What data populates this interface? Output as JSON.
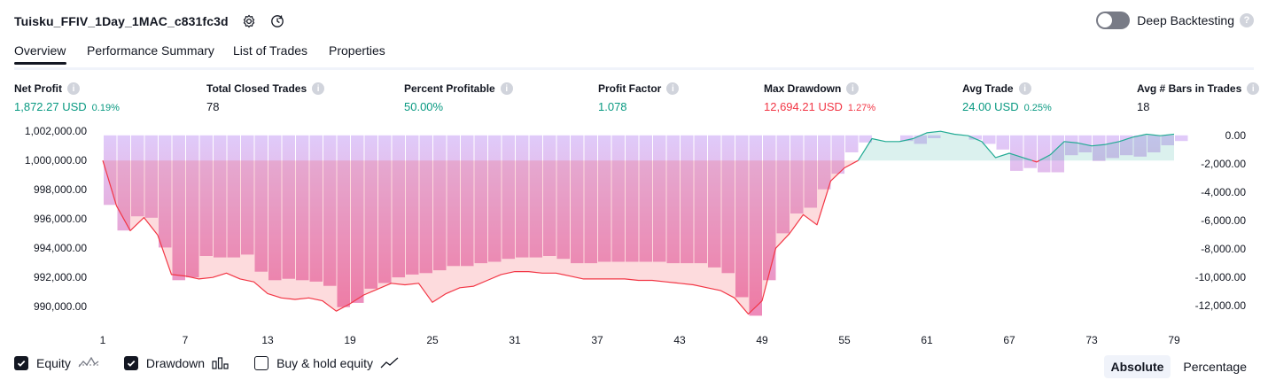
{
  "header": {
    "title": "Tuisku_FFIV_1Day_1MAC_c831fc3d",
    "settings_icon": "gear-icon",
    "replay_icon": "clock-replay-icon",
    "deep_backtesting_label": "Deep Backtesting",
    "deep_backtesting_enabled": false,
    "help_icon": "?"
  },
  "tabs": [
    {
      "label": "Overview",
      "active": true
    },
    {
      "label": "Performance Summary",
      "active": false
    },
    {
      "label": "List of Trades",
      "active": false
    },
    {
      "label": "Properties",
      "active": false
    }
  ],
  "metrics": {
    "info_icon": "i",
    "net_profit": {
      "label": "Net Profit",
      "value": "1,872.27 USD",
      "pct": "0.19%"
    },
    "total_closed_trades": {
      "label": "Total Closed Trades",
      "value": "78"
    },
    "percent_profitable": {
      "label": "Percent Profitable",
      "value": "50.00%"
    },
    "profit_factor": {
      "label": "Profit Factor",
      "value": "1.078"
    },
    "max_drawdown": {
      "label": "Max Drawdown",
      "value": "12,694.21 USD",
      "pct": "1.27%"
    },
    "avg_trade": {
      "label": "Avg Trade",
      "value": "24.00 USD",
      "pct": "0.25%"
    },
    "avg_bars": {
      "label": "Avg # Bars in Trades",
      "value": "18"
    }
  },
  "legend": {
    "equity": {
      "label": "Equity",
      "checked": true
    },
    "drawdown": {
      "label": "Drawdown",
      "checked": true
    },
    "buy_hold": {
      "label": "Buy & hold equity",
      "checked": false
    }
  },
  "modes": {
    "absolute": "Absolute",
    "percentage": "Percentage",
    "active": "Absolute"
  },
  "colors": {
    "profit_green": "#089981",
    "loss_red": "#f23645",
    "drawdown_bar": "#c38df5",
    "equity_line_loss": "#f23645",
    "equity_line_gain": "#22ab94"
  },
  "chart_data": {
    "type": "line",
    "title": "",
    "x_ticks": [
      "1",
      "7",
      "13",
      "19",
      "25",
      "31",
      "37",
      "43",
      "49",
      "55",
      "61",
      "67",
      "73",
      "79"
    ],
    "left_axis": {
      "ticks": [
        "1,002,000.00",
        "1,000,000.00",
        "998,000.00",
        "996,000.00",
        "994,000.00",
        "992,000.00",
        "990,000.00"
      ],
      "ylim": [
        988800,
        1002500
      ]
    },
    "right_axis": {
      "ticks": [
        "0.00",
        "-2,000.00",
        "-4,000.00",
        "-6,000.00",
        "-8,000.00",
        "-10,000.00",
        "-12,000.00"
      ],
      "ylim": [
        -13300,
        800
      ]
    },
    "baseline": 1000000,
    "series": [
      {
        "name": "Equity",
        "x": [
          1,
          2,
          3,
          4,
          5,
          6,
          7,
          8,
          9,
          10,
          11,
          12,
          13,
          14,
          15,
          16,
          17,
          18,
          19,
          20,
          21,
          22,
          23,
          24,
          25,
          26,
          27,
          28,
          29,
          30,
          31,
          32,
          33,
          34,
          35,
          36,
          37,
          38,
          39,
          40,
          41,
          42,
          43,
          44,
          45,
          46,
          47,
          48,
          49,
          50,
          51,
          52,
          53,
          54,
          55,
          56,
          57,
          58,
          59,
          60,
          61,
          62,
          63,
          64,
          65,
          66,
          67,
          68,
          69,
          70,
          71,
          72,
          73,
          74,
          75,
          76,
          77,
          78,
          79
        ],
        "values": [
          1000000,
          996900,
          995200,
          996100,
          994900,
          992200,
          992100,
          991900,
          992000,
          992300,
          991900,
          991700,
          990900,
          990600,
          990500,
          990600,
          990400,
          989700,
          990200,
          990800,
          991200,
          991600,
          991500,
          991600,
          990300,
          990900,
          991300,
          991400,
          991800,
          992200,
          992400,
          992400,
          992300,
          992300,
          992100,
          991900,
          991900,
          991900,
          991900,
          991800,
          991800,
          991700,
          991600,
          991500,
          991300,
          991100,
          990600,
          989500,
          990400,
          994000,
          995000,
          996300,
          995600,
          998600,
          999500,
          1000000,
          1001500,
          1001300,
          1001300,
          1001500,
          1001900,
          1002000,
          1001800,
          1001700,
          1001300,
          1000200,
          1000500,
          1000200,
          999900,
          1000400,
          1001300,
          1001200,
          1001000,
          1001100,
          1001300,
          1001600,
          1001800,
          1001700,
          1001800
        ]
      },
      {
        "name": "Drawdown",
        "x": [
          1,
          2,
          3,
          4,
          5,
          6,
          7,
          8,
          9,
          10,
          11,
          12,
          13,
          14,
          15,
          16,
          17,
          18,
          19,
          20,
          21,
          22,
          23,
          24,
          25,
          26,
          27,
          28,
          29,
          30,
          31,
          32,
          33,
          34,
          35,
          36,
          37,
          38,
          39,
          40,
          41,
          42,
          43,
          44,
          45,
          46,
          47,
          48,
          49,
          50,
          51,
          52,
          53,
          54,
          55,
          56,
          57,
          58,
          59,
          60,
          61,
          62,
          63,
          64,
          65,
          66,
          67,
          68,
          69,
          70,
          71,
          72,
          73,
          74,
          75,
          76,
          77,
          78,
          79
        ],
        "values": [
          -4900,
          -6700,
          -5700,
          -5800,
          -7900,
          -10200,
          -10000,
          -8500,
          -8600,
          -8600,
          -8400,
          -9600,
          -10200,
          -10100,
          -10200,
          -10300,
          -10600,
          -12100,
          -11800,
          -10800,
          -10400,
          -10000,
          -9800,
          -9700,
          -9500,
          -9200,
          -9200,
          -9000,
          -8900,
          -8700,
          -8600,
          -8600,
          -8500,
          -8700,
          -9000,
          -9000,
          -8900,
          -8900,
          -8900,
          -8900,
          -8900,
          -9000,
          -9000,
          -9000,
          -9300,
          -9700,
          -11400,
          -12700,
          -10200,
          -6900,
          -5500,
          -5100,
          -3800,
          -2700,
          -1200,
          -500,
          0,
          0,
          -400,
          -600,
          -200,
          0,
          0,
          -300,
          -600,
          -1000,
          -2500,
          -2300,
          -2600,
          -2600,
          -1400,
          -1200,
          -1800,
          -1600,
          -1400,
          -1500,
          -1200,
          -700,
          -400
        ]
      }
    ]
  }
}
